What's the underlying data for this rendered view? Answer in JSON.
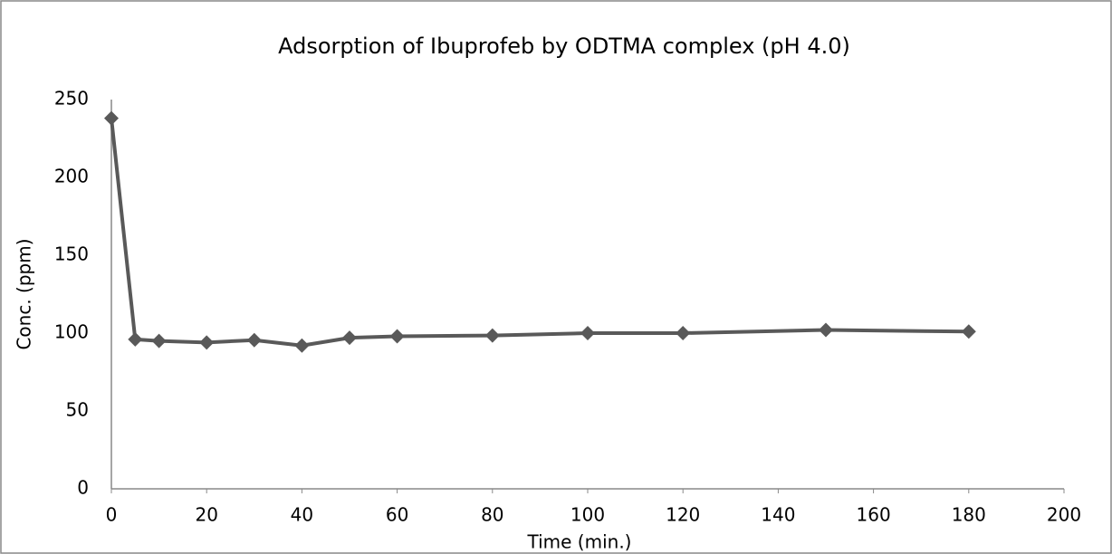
{
  "chart_data": {
    "type": "line",
    "title": "Adsorption of Ibuprofeb by ODTMA complex (pH 4.0)",
    "x_label": "Time (min.)",
    "y_label": "Conc. (ppm)",
    "x": [
      0,
      5,
      10,
      20,
      30,
      40,
      50,
      60,
      80,
      100,
      120,
      150,
      180
    ],
    "series": [
      {
        "name": "Conc.",
        "color": "#595959",
        "values": [
          238,
          96,
          95,
          94,
          95.5,
          92,
          97,
          98,
          98.5,
          100,
          100,
          102,
          101
        ]
      }
    ],
    "xlim": [
      0,
      200
    ],
    "xticks": [
      0,
      20,
      40,
      60,
      80,
      100,
      120,
      140,
      160,
      180,
      200
    ],
    "ylim": [
      0,
      250
    ],
    "yticks": [
      0,
      50,
      100,
      150,
      200,
      250
    ],
    "grid": false
  }
}
